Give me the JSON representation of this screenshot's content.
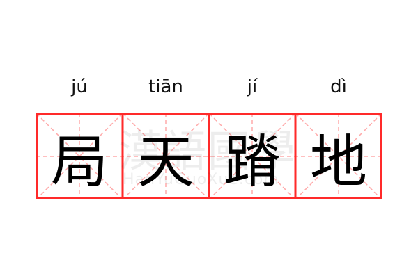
{
  "idiom": {
    "pinyin": [
      "jú",
      "tiān",
      "jí",
      "dì"
    ],
    "characters": [
      "局",
      "天",
      "蹐",
      "地"
    ]
  },
  "watermark": {
    "chinese": "漢語國學",
    "latin": "HanYuGuoXue.com"
  },
  "colors": {
    "border": "#ff2a2a",
    "guide": "#ffaaaa",
    "text": "#000000"
  }
}
